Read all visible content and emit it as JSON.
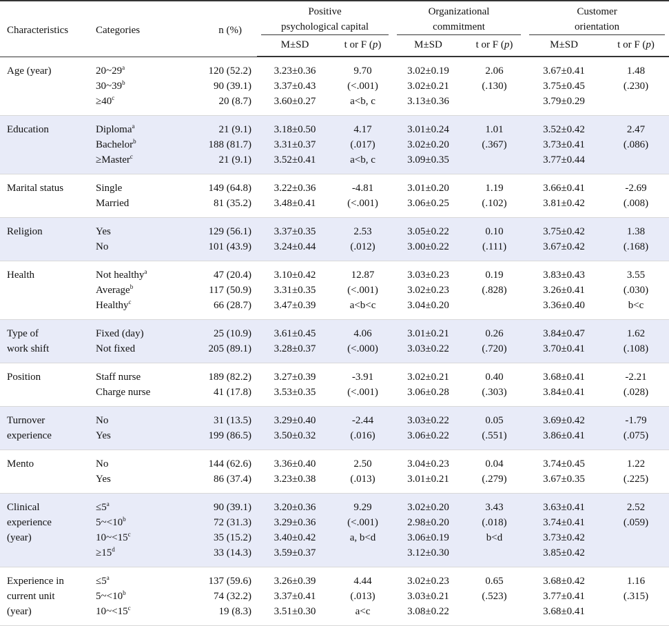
{
  "header": {
    "characteristics": "Characteristics",
    "categories": "Categories",
    "n_pct": "n (%)",
    "groups": [
      {
        "line1": "Positive",
        "line2": "psychological capital"
      },
      {
        "line1": "Organizational",
        "line2": "commitment"
      },
      {
        "line1": "Customer",
        "line2": "orientation"
      }
    ],
    "msd": "M±SD",
    "test_prefix": "t or F (",
    "test_p": "p",
    "test_suffix": ")"
  },
  "rows": [
    {
      "label": [
        "Age (year)"
      ],
      "cats": [
        [
          "20~29",
          "a"
        ],
        [
          "30~39",
          "b"
        ],
        [
          "≥40",
          "c"
        ]
      ],
      "n": [
        "120 (52.2)",
        "90 (39.1)",
        "20 (8.7)"
      ],
      "pc": [
        "3.23±0.36",
        "3.37±0.43",
        "3.60±0.27"
      ],
      "pct": [
        "9.70",
        "(<.001)",
        "a<b, c"
      ],
      "oc": [
        "3.02±0.19",
        "3.02±0.21",
        "3.13±0.36"
      ],
      "oct": [
        "2.06",
        "(.130)"
      ],
      "co": [
        "3.67±0.41",
        "3.75±0.45",
        "3.79±0.29"
      ],
      "cot": [
        "1.48",
        "(.230)"
      ]
    },
    {
      "label": [
        "Education"
      ],
      "cats": [
        [
          "Diploma",
          "a"
        ],
        [
          "Bachelor",
          "b"
        ],
        [
          "≥Master",
          "c"
        ]
      ],
      "n": [
        "21 (9.1)",
        "188 (81.7)",
        "21 (9.1)"
      ],
      "pc": [
        "3.18±0.50",
        "3.31±0.37",
        "3.52±0.41"
      ],
      "pct": [
        "4.17",
        "(.017)",
        "a<b, c"
      ],
      "oc": [
        "3.01±0.24",
        "3.02±0.20",
        "3.09±0.35"
      ],
      "oct": [
        "1.01",
        "(.367)"
      ],
      "co": [
        "3.52±0.42",
        "3.73±0.41",
        "3.77±0.44"
      ],
      "cot": [
        "2.47",
        "(.086)"
      ]
    },
    {
      "label": [
        "Marital status"
      ],
      "cats": [
        [
          "Single",
          ""
        ],
        [
          "Married",
          ""
        ]
      ],
      "n": [
        "149 (64.8)",
        "81 (35.2)"
      ],
      "pc": [
        "3.22±0.36",
        "3.48±0.41"
      ],
      "pct": [
        "-4.81",
        "(<.001)"
      ],
      "oc": [
        "3.01±0.20",
        "3.06±0.25"
      ],
      "oct": [
        "1.19",
        "(.102)"
      ],
      "co": [
        "3.66±0.41",
        "3.81±0.42"
      ],
      "cot": [
        "-2.69",
        "(.008)"
      ]
    },
    {
      "label": [
        "Religion"
      ],
      "cats": [
        [
          "Yes",
          ""
        ],
        [
          "No",
          ""
        ]
      ],
      "n": [
        "129 (56.1)",
        "101 (43.9)"
      ],
      "pc": [
        "3.37±0.35",
        "3.24±0.44"
      ],
      "pct": [
        "2.53",
        "(.012)"
      ],
      "oc": [
        "3.05±0.22",
        "3.00±0.22"
      ],
      "oct": [
        "0.10",
        "(.111)"
      ],
      "co": [
        "3.75±0.42",
        "3.67±0.42"
      ],
      "cot": [
        "1.38",
        "(.168)"
      ]
    },
    {
      "label": [
        "Health"
      ],
      "cats": [
        [
          "Not healthy",
          "a"
        ],
        [
          "Average",
          "b"
        ],
        [
          "Healthy",
          "c"
        ]
      ],
      "n": [
        "47 (20.4)",
        "117 (50.9)",
        "66 (28.7)"
      ],
      "pc": [
        "3.10±0.42",
        "3.31±0.35",
        "3.47±0.39"
      ],
      "pct": [
        "12.87",
        "(<.001)",
        "a<b<c"
      ],
      "oc": [
        "3.03±0.23",
        "3.02±0.23",
        "3.04±0.20"
      ],
      "oct": [
        "0.19",
        "(.828)"
      ],
      "co": [
        "3.83±0.43",
        "3.26±0.41",
        "3.36±0.40"
      ],
      "cot": [
        "3.55",
        "(.030)",
        "b<c"
      ]
    },
    {
      "label": [
        "Type of",
        "work shift"
      ],
      "cats": [
        [
          "Fixed (day)",
          ""
        ],
        [
          "Not fixed",
          ""
        ]
      ],
      "n": [
        "25 (10.9)",
        "205 (89.1)"
      ],
      "pc": [
        "3.61±0.45",
        "3.28±0.37"
      ],
      "pct": [
        "4.06",
        "(<.000)"
      ],
      "oc": [
        "3.01±0.21",
        "3.03±0.22"
      ],
      "oct": [
        "0.26",
        "(.720)"
      ],
      "co": [
        "3.84±0.47",
        "3.70±0.41"
      ],
      "cot": [
        "1.62",
        "(.108)"
      ]
    },
    {
      "label": [
        "Position"
      ],
      "cats": [
        [
          "Staff nurse",
          ""
        ],
        [
          "Charge nurse",
          ""
        ]
      ],
      "n": [
        "189 (82.2)",
        "41 (17.8)"
      ],
      "pc": [
        "3.27±0.39",
        "3.53±0.35"
      ],
      "pct": [
        "-3.91",
        "(<.001)"
      ],
      "oc": [
        "3.02±0.21",
        "3.06±0.28"
      ],
      "oct": [
        "0.40",
        "(.303)"
      ],
      "co": [
        "3.68±0.41",
        "3.84±0.41"
      ],
      "cot": [
        "-2.21",
        "(.028)"
      ]
    },
    {
      "label": [
        "Turnover",
        "experience"
      ],
      "cats": [
        [
          "No",
          ""
        ],
        [
          "Yes",
          ""
        ]
      ],
      "n": [
        "31 (13.5)",
        "199 (86.5)"
      ],
      "pc": [
        "3.29±0.40",
        "3.50±0.32"
      ],
      "pct": [
        "-2.44",
        "(.016)"
      ],
      "oc": [
        "3.03±0.22",
        "3.06±0.22"
      ],
      "oct": [
        "0.05",
        "(.551)"
      ],
      "co": [
        "3.69±0.42",
        "3.86±0.41"
      ],
      "cot": [
        "-1.79",
        "(.075)"
      ]
    },
    {
      "label": [
        "Mento"
      ],
      "cats": [
        [
          "No",
          ""
        ],
        [
          "Yes",
          ""
        ]
      ],
      "n": [
        "144 (62.6)",
        "86 (37.4)"
      ],
      "pc": [
        "3.36±0.40",
        "3.23±0.38"
      ],
      "pct": [
        "2.50",
        "(.013)"
      ],
      "oc": [
        "3.04±0.23",
        "3.01±0.21"
      ],
      "oct": [
        "0.04",
        "(.279)"
      ],
      "co": [
        "3.74±0.45",
        "3.67±0.35"
      ],
      "cot": [
        "1.22",
        "(.225)"
      ]
    },
    {
      "label": [
        "Clinical",
        "experience",
        "(year)"
      ],
      "cats": [
        [
          "≤5",
          "a"
        ],
        [
          "5~<10",
          "b"
        ],
        [
          "10~<15",
          "c"
        ],
        [
          "≥15",
          "d"
        ]
      ],
      "n": [
        "90 (39.1)",
        "72 (31.3)",
        "35 (15.2)",
        "33 (14.3)"
      ],
      "pc": [
        "3.20±0.36",
        "3.29±0.36",
        "3.40±0.42",
        "3.59±0.37"
      ],
      "pct": [
        "9.29",
        "(<.001)",
        "a, b<d"
      ],
      "oc": [
        "3.02±0.20",
        "2.98±0.20",
        "3.06±0.19",
        "3.12±0.30"
      ],
      "oct": [
        "3.43",
        "(.018)",
        "b<d"
      ],
      "co": [
        "3.63±0.41",
        "3.74±0.41",
        "3.73±0.42",
        "3.85±0.42"
      ],
      "cot": [
        "2.52",
        "(.059)"
      ]
    },
    {
      "label": [
        "Experience in",
        "current unit",
        "(year)"
      ],
      "cats": [
        [
          "≤5",
          "a"
        ],
        [
          "5~<10",
          "b"
        ],
        [
          "10~<15",
          "c"
        ]
      ],
      "n": [
        "137 (59.6)",
        "74 (32.2)",
        "19 (8.3)"
      ],
      "pc": [
        "3.26±0.39",
        "3.37±0.41",
        "3.51±0.30"
      ],
      "pct": [
        "4.44",
        "(.013)",
        "a<c"
      ],
      "oc": [
        "3.02±0.23",
        "3.03±0.21",
        "3.08±0.22"
      ],
      "oct": [
        "0.65",
        "(.523)"
      ],
      "co": [
        "3.68±0.42",
        "3.77±0.41",
        "3.68±0.41"
      ],
      "cot": [
        "1.16",
        "(.315)"
      ]
    }
  ],
  "colors": {
    "shade": "#e8ebf8",
    "rule": "#333333"
  }
}
